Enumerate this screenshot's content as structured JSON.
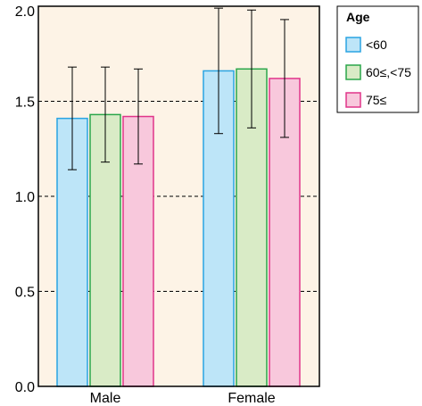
{
  "chart_data": {
    "type": "bar",
    "categories": [
      "Male",
      "Female"
    ],
    "series": [
      {
        "name": "<60",
        "values": [
          1.41,
          1.66
        ],
        "err_low": [
          1.14,
          1.33
        ],
        "err_high": [
          1.68,
          1.99
        ],
        "fill": "#bde5f8",
        "stroke": "#2aa4e2"
      },
      {
        "name": "60≤,<75",
        "values": [
          1.43,
          1.67
        ],
        "err_low": [
          1.18,
          1.36
        ],
        "err_high": [
          1.68,
          1.98
        ],
        "fill": "#d9ebc6",
        "stroke": "#2aa64a"
      },
      {
        "name": "75≤",
        "values": [
          1.42,
          1.62
        ],
        "err_low": [
          1.17,
          1.31
        ],
        "err_high": [
          1.67,
          1.93
        ],
        "fill": "#f8c8dc",
        "stroke": "#e0358a"
      }
    ],
    "yticks": [
      0.0,
      0.5,
      1.0,
      1.5,
      2.0
    ],
    "ytick_labels": [
      "0.0",
      "0.5",
      "1.0",
      "1.5",
      "2.0"
    ],
    "ylim": [
      0,
      2.0
    ],
    "grid": "dashed horizontal",
    "legend": {
      "title": "Age",
      "placement": "right"
    },
    "plot_background": "#fdf3e6",
    "title": "",
    "xlabel": "",
    "ylabel": ""
  }
}
